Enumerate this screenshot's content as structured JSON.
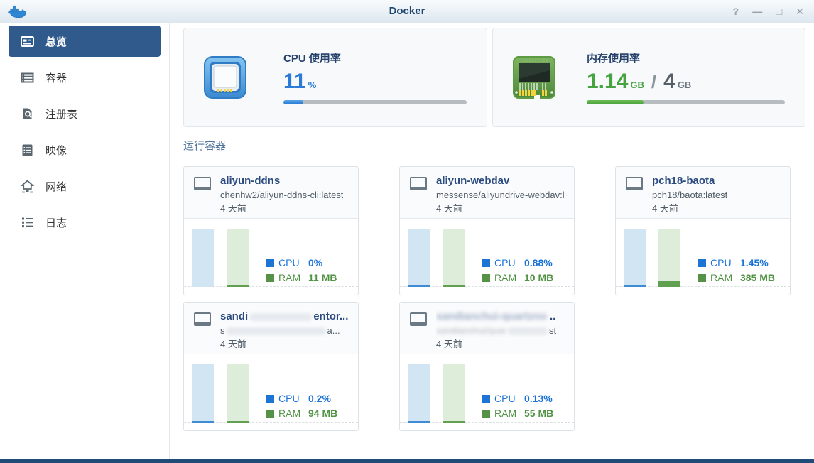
{
  "window": {
    "title": "Docker",
    "controls": [
      {
        "name": "help",
        "glyph": "?"
      },
      {
        "name": "minimize",
        "glyph": "—"
      },
      {
        "name": "maximize",
        "glyph": "□"
      },
      {
        "name": "close",
        "glyph": "✕"
      }
    ]
  },
  "sidebar": {
    "items": [
      {
        "label": "总览",
        "active": true
      },
      {
        "label": "容器",
        "active": false
      },
      {
        "label": "注册表",
        "active": false
      },
      {
        "label": "映像",
        "active": false
      },
      {
        "label": "网络",
        "active": false
      },
      {
        "label": "日志",
        "active": false
      }
    ]
  },
  "stats": {
    "cpu": {
      "title": "CPU 使用率",
      "value": "11",
      "unit": "%",
      "percent": 11
    },
    "memory": {
      "title": "内存使用率",
      "used": "1.14",
      "used_unit": "GB",
      "divider": "/",
      "total": "4",
      "total_unit": "GB",
      "percent": 28.5
    }
  },
  "running": {
    "title": "运行容器",
    "legend": {
      "cpu": "CPU",
      "ram": "RAM"
    },
    "chart_note_colors": {
      "cpu_track": "#d2e5f3",
      "cpu_line": "#3f8cd6",
      "ram_track": "#ddedda",
      "ram_line": "#61a050"
    },
    "containers": [
      {
        "name": [
          {
            "t": "aliyun-ddns"
          }
        ],
        "image": [
          {
            "t": "chenhw2/aliyun-ddns-cli:latest"
          }
        ],
        "age": "4 天前",
        "cpu_text": "0%",
        "ram_text": "11 MB",
        "cpu_pct": 0,
        "ram_pct": 0.27
      },
      {
        "name": [
          {
            "t": "aliyun-webdav"
          }
        ],
        "image": [
          {
            "t": "messense/aliyundrive-webdav:l..."
          }
        ],
        "age": "4 天前",
        "cpu_text": "0.88%",
        "ram_text": "10 MB",
        "cpu_pct": 0.88,
        "ram_pct": 0.24
      },
      {
        "name": [
          {
            "t": "pch18-baota"
          }
        ],
        "image": [
          {
            "t": "pch18/baota:latest"
          }
        ],
        "age": "4 天前",
        "cpu_text": "1.45%",
        "ram_text": "385 MB",
        "cpu_pct": 1.45,
        "ram_pct": 9.4
      },
      {
        "name": [
          {
            "t": "sandi"
          },
          {
            "gap": 88
          },
          {
            "t": "entor..."
          }
        ],
        "image": [
          {
            "t": "s"
          },
          {
            "gap": 140
          },
          {
            "t": "a..."
          }
        ],
        "age": "4 天前",
        "cpu_text": "0.2%",
        "ram_text": "94 MB",
        "cpu_pct": 0.2,
        "ram_pct": 2.3
      },
      {
        "name": [
          {
            "t": "sandianchui-quartzno",
            "blur": true
          },
          {
            "t": " .."
          }
        ],
        "image": [
          {
            "t": "sandianshui/quar",
            "blur": true
          },
          {
            "gap": 56
          },
          {
            "t": "st"
          }
        ],
        "age": "4 天前",
        "cpu_text": "0.13%",
        "ram_text": "55 MB",
        "cpu_pct": 0.13,
        "ram_pct": 1.34
      }
    ]
  },
  "colors": {
    "accent_blue": "#2a7ad8",
    "accent_green": "#45a440",
    "sidebar_active": "#305a8c",
    "chrome_navy": "#204a78"
  }
}
